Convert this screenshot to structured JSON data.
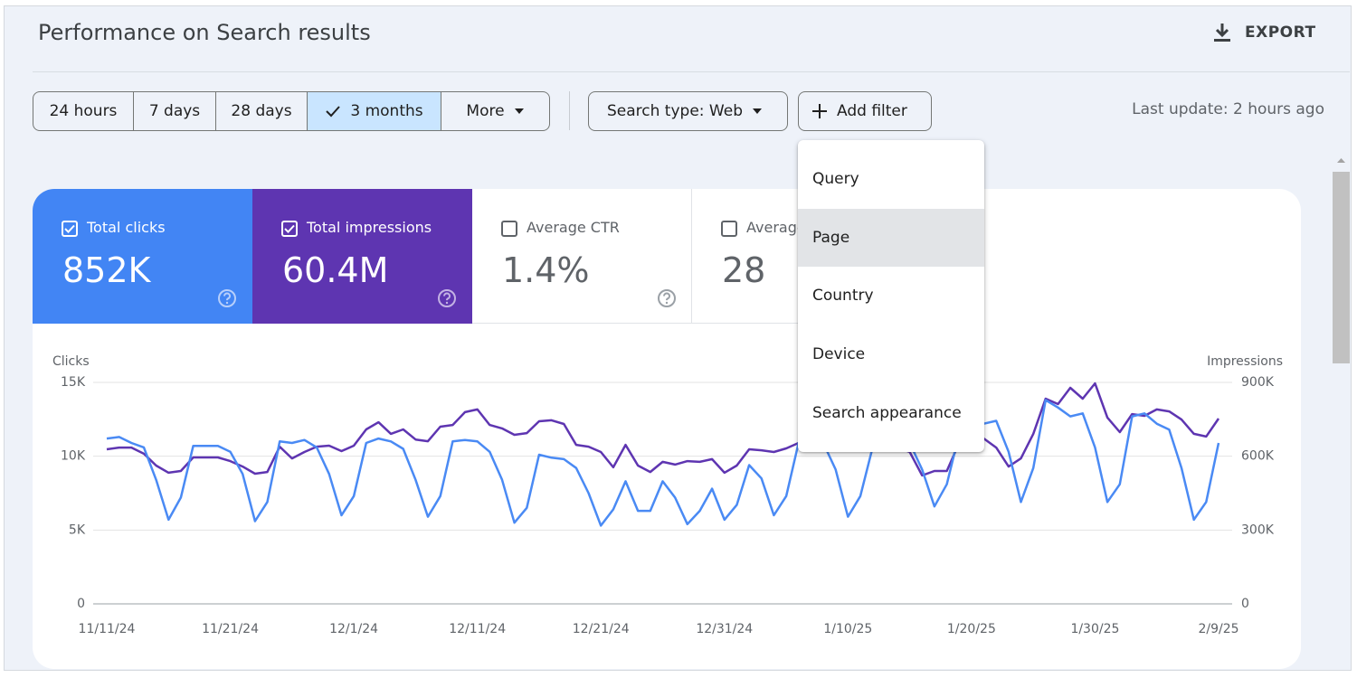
{
  "header": {
    "title": "Performance on Search results",
    "export": "EXPORT"
  },
  "toolbar": {
    "date_ranges": [
      "24 hours",
      "7 days",
      "28 days",
      "3 months",
      "More"
    ],
    "search_type": "Search type: Web",
    "add_filter": "Add filter",
    "last_update": "Last update: 2 hours ago"
  },
  "metrics": [
    {
      "label": "Total clicks",
      "value": "852K"
    },
    {
      "label": "Total impressions",
      "value": "60.4M"
    },
    {
      "label": "Average CTR",
      "value": "1.4%"
    },
    {
      "label": "Average",
      "value": "28"
    }
  ],
  "filter_menu": [
    "Query",
    "Page",
    "Country",
    "Device",
    "Search appearance"
  ],
  "chart_data": {
    "type": "line",
    "y_label": "Clicks",
    "y2_label": "Impressions",
    "x": [
      "11/11/24",
      "11/12/24",
      "11/13/24",
      "11/14/24",
      "11/15/24",
      "11/16/24",
      "11/17/24",
      "11/18/24",
      "11/19/24",
      "11/20/24",
      "11/21/24",
      "11/22/24",
      "11/23/24",
      "11/24/24",
      "11/25/24",
      "11/26/24",
      "11/27/24",
      "11/28/24",
      "11/29/24",
      "11/30/24",
      "12/1/24",
      "12/2/24",
      "12/3/24",
      "12/4/24",
      "12/5/24",
      "12/6/24",
      "12/7/24",
      "12/8/24",
      "12/9/24",
      "12/10/24",
      "12/11/24",
      "12/12/24",
      "12/13/24",
      "12/14/24",
      "12/15/24",
      "12/16/24",
      "12/17/24",
      "12/18/24",
      "12/19/24",
      "12/20/24",
      "12/21/24",
      "12/22/24",
      "12/23/24",
      "12/24/24",
      "12/25/24",
      "12/26/24",
      "12/27/24",
      "12/28/24",
      "12/29/24",
      "12/30/24",
      "12/31/24",
      "1/1/25",
      "1/2/25",
      "1/3/25",
      "1/4/25",
      "1/5/25",
      "1/6/25",
      "1/7/25",
      "1/8/25",
      "1/9/25",
      "1/10/25",
      "1/11/25",
      "1/12/25",
      "1/13/25",
      "1/14/25",
      "1/15/25",
      "1/16/25",
      "1/17/25",
      "1/18/25",
      "1/19/25",
      "1/20/25",
      "1/21/25",
      "1/22/25",
      "1/23/25",
      "1/24/25",
      "1/25/25",
      "1/26/25",
      "1/27/25",
      "1/28/25",
      "1/29/25",
      "1/30/25",
      "1/31/25",
      "2/1/25",
      "2/2/25",
      "2/3/25",
      "2/4/25",
      "2/5/25",
      "2/6/25",
      "2/7/25",
      "2/8/25",
      "2/9/25"
    ],
    "xticks": [
      "11/11/24",
      "11/21/24",
      "12/1/24",
      "12/11/24",
      "12/21/24",
      "12/31/24",
      "1/10/25",
      "1/20/25",
      "1/30/25",
      "2/9/25"
    ],
    "ylim": [
      0,
      15000
    ],
    "yticks": [
      0,
      {
        "value": 5000,
        "label": "5K"
      },
      {
        "value": 10000,
        "label": "10K"
      },
      {
        "value": 15000,
        "label": "15K"
      }
    ],
    "y2lim": [
      0,
      900000
    ],
    "y2ticks": [
      0,
      {
        "value": 300000,
        "label": "300K"
      },
      {
        "value": 600000,
        "label": "600K"
      },
      {
        "value": 900000,
        "label": "900K"
      }
    ],
    "grid": true,
    "series": [
      {
        "name": "Total clicks",
        "color": "#4a8af4",
        "values": [
          11200,
          11300,
          10900,
          10600,
          8400,
          5700,
          7200,
          10700,
          10700,
          10700,
          10300,
          8800,
          5600,
          6900,
          11000,
          10900,
          11100,
          10600,
          8800,
          6000,
          7300,
          10900,
          11200,
          11000,
          10500,
          8400,
          5900,
          7300,
          11000,
          11100,
          11000,
          10300,
          8400,
          5500,
          6500,
          10100,
          9900,
          9800,
          9200,
          7500,
          5300,
          6400,
          8300,
          6300,
          6300,
          8300,
          7200,
          5400,
          6300,
          7800,
          5700,
          6700,
          9400,
          8500,
          6000,
          7300,
          10900,
          11200,
          10900,
          9100,
          5900,
          7300,
          10600,
          11200,
          11100,
          10900,
          9100,
          6600,
          8100,
          11500,
          11800,
          12200,
          12400,
          10300,
          6900,
          9200,
          13800,
          13300,
          12700,
          12900,
          10600,
          6900,
          8100,
          12700,
          12900,
          12200,
          11800,
          9200,
          5700,
          6900,
          10900
        ]
      },
      {
        "name": "Total impressions",
        "color": "#5e35b1",
        "axis": "y2",
        "values": [
          628000,
          635000,
          635000,
          610000,
          562000,
          533000,
          540000,
          595000,
          595000,
          595000,
          580000,
          558000,
          529000,
          536000,
          639000,
          591000,
          617000,
          639000,
          643000,
          621000,
          643000,
          709000,
          738000,
          691000,
          709000,
          668000,
          661000,
          720000,
          727000,
          779000,
          790000,
          727000,
          713000,
          687000,
          694000,
          742000,
          746000,
          731000,
          646000,
          639000,
          617000,
          555000,
          646000,
          562000,
          536000,
          577000,
          566000,
          580000,
          577000,
          588000,
          533000,
          562000,
          628000,
          624000,
          617000,
          632000,
          654000,
          661000,
          668000,
          654000,
          635000,
          635000,
          646000,
          654000,
          635000,
          617000,
          522000,
          540000,
          540000,
          654000,
          727000,
          672000,
          635000,
          558000,
          591000,
          691000,
          834000,
          812000,
          878000,
          834000,
          896000,
          757000,
          698000,
          771000,
          764000,
          790000,
          782000,
          749000,
          691000,
          680000,
          753000
        ]
      }
    ]
  }
}
